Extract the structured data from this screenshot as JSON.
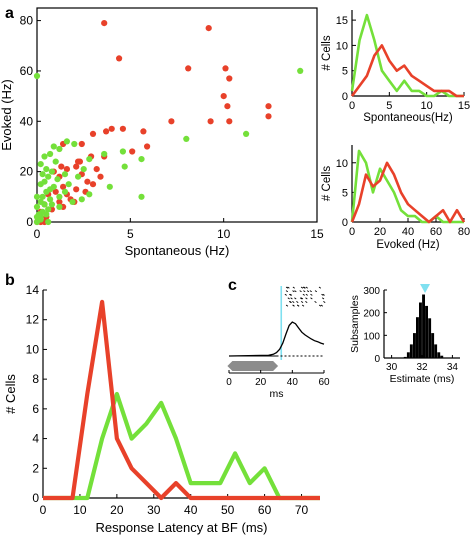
{
  "panel_letters": {
    "a": "a",
    "b": "b",
    "c": "c"
  },
  "colors": {
    "red": "#e8412a",
    "green": "#74e03a",
    "black": "#000000",
    "gray": "#8c8c8c",
    "cyan": "#7fe0f0"
  },
  "chart_data": [
    {
      "id": "scatter",
      "type": "scatter",
      "xlabel": "Spontaneous (Hz)",
      "ylabel": "Evoked (Hz)",
      "xlim": [
        0,
        15
      ],
      "ylim": [
        0,
        85
      ],
      "xticks": [
        "0",
        "5",
        "10",
        "15"
      ],
      "xtick_values": [
        0,
        5,
        10,
        15
      ],
      "yticks": [
        "0",
        "20",
        "40",
        "60",
        "80"
      ],
      "ytick_values": [
        0,
        20,
        40,
        60,
        80
      ],
      "series": [
        {
          "color": "red",
          "points": [
            [
              3.6,
              79
            ],
            [
              9.2,
              77
            ],
            [
              4.4,
              65
            ],
            [
              8.1,
              61
            ],
            [
              10.1,
              61
            ],
            [
              10.3,
              57
            ],
            [
              10.0,
              50
            ],
            [
              10.2,
              46
            ],
            [
              12.4,
              46
            ],
            [
              12.4,
              42
            ],
            [
              9.3,
              40
            ],
            [
              10.3,
              40
            ],
            [
              7.2,
              40
            ],
            [
              4.6,
              37
            ],
            [
              4.0,
              37
            ],
            [
              5.7,
              36
            ],
            [
              3.7,
              36
            ],
            [
              3.0,
              35
            ],
            [
              1.4,
              31
            ],
            [
              5.9,
              30
            ],
            [
              2.4,
              31
            ],
            [
              5.1,
              28
            ],
            [
              3.6,
              26
            ],
            [
              2.9,
              26
            ],
            [
              2.2,
              24
            ],
            [
              1.3,
              22
            ],
            [
              2.1,
              22
            ],
            [
              3.2,
              21
            ],
            [
              1.6,
              21
            ],
            [
              0.9,
              20
            ],
            [
              2.4,
              19
            ],
            [
              3.4,
              18
            ],
            [
              1.2,
              18
            ],
            [
              2.7,
              16
            ],
            [
              3.0,
              15
            ],
            [
              1.4,
              14
            ],
            [
              2.1,
              13
            ],
            [
              2.6,
              12
            ],
            [
              1.0,
              12
            ],
            [
              1.6,
              11
            ],
            [
              0.6,
              11
            ],
            [
              1.8,
              9
            ],
            [
              1.2,
              8
            ],
            [
              2.0,
              8
            ],
            [
              0.4,
              7
            ],
            [
              1.4,
              6
            ],
            [
              0.8,
              5
            ],
            [
              0.2,
              4
            ],
            [
              0.5,
              2
            ],
            [
              0.1,
              1
            ],
            [
              0.2,
              0
            ],
            [
              0.4,
              0
            ],
            [
              0.0,
              0
            ],
            [
              2.3,
              24
            ]
          ]
        },
        {
          "color": "green",
          "points": [
            [
              0.0,
              58
            ],
            [
              14.1,
              60
            ],
            [
              11.2,
              35
            ],
            [
              8.0,
              33
            ],
            [
              1.6,
              32
            ],
            [
              2.0,
              31
            ],
            [
              0.9,
              30
            ],
            [
              1.2,
              29
            ],
            [
              4.6,
              28
            ],
            [
              0.7,
              27
            ],
            [
              3.6,
              27
            ],
            [
              0.4,
              26
            ],
            [
              2.8,
              25
            ],
            [
              5.6,
              25
            ],
            [
              1.0,
              24
            ],
            [
              0.2,
              23
            ],
            [
              4.7,
              22
            ],
            [
              0.5,
              21
            ],
            [
              2.5,
              21
            ],
            [
              0.8,
              20
            ],
            [
              0.3,
              19
            ],
            [
              1.5,
              19
            ],
            [
              2.2,
              18
            ],
            [
              0.6,
              18
            ],
            [
              1.1,
              17
            ],
            [
              0.4,
              16
            ],
            [
              0.2,
              15
            ],
            [
              1.7,
              15
            ],
            [
              0.9,
              14
            ],
            [
              3.9,
              14
            ],
            [
              0.7,
              13
            ],
            [
              1.5,
              12
            ],
            [
              0.5,
              12
            ],
            [
              2.8,
              11
            ],
            [
              0.3,
              10
            ],
            [
              0.0,
              10
            ],
            [
              1.2,
              10
            ],
            [
              5.6,
              10
            ],
            [
              0.7,
              9
            ],
            [
              2.4,
              9
            ],
            [
              1.9,
              8
            ],
            [
              0.2,
              8
            ],
            [
              0.4,
              7
            ],
            [
              0.8,
              7
            ],
            [
              0.0,
              6
            ],
            [
              1.2,
              6
            ],
            [
              0.6,
              5
            ],
            [
              0.3,
              4
            ],
            [
              0.1,
              3
            ],
            [
              0.5,
              3
            ],
            [
              0.2,
              2
            ],
            [
              0.0,
              2
            ],
            [
              0.2,
              1
            ],
            [
              0.6,
              0
            ],
            [
              0.0,
              0
            ]
          ]
        }
      ]
    },
    {
      "id": "hist_spont",
      "type": "line",
      "xlabel": "Spontaneous(Hz)",
      "ylabel": "# Cells",
      "xlim": [
        0,
        15
      ],
      "ylim": [
        0,
        17
      ],
      "xticks": [
        "0",
        "5",
        "10",
        "15"
      ],
      "xtick_values": [
        0,
        5,
        10,
        15
      ],
      "yticks": [
        "0",
        "5",
        "10",
        "15"
      ],
      "ytick_values": [
        0,
        5,
        10,
        15
      ],
      "series": [
        {
          "color": "green",
          "x": [
            0,
            1,
            2,
            3,
            4,
            5,
            6,
            7,
            8,
            9,
            10,
            11,
            12,
            13,
            14,
            15
          ],
          "values": [
            1,
            11,
            16,
            11,
            5,
            3,
            1,
            3,
            1,
            1,
            0,
            0,
            1,
            0,
            0,
            0
          ]
        },
        {
          "color": "red",
          "x": [
            0,
            1,
            2,
            3,
            4,
            5,
            6,
            7,
            8,
            9,
            10,
            11,
            12,
            13,
            14,
            15
          ],
          "values": [
            0,
            2,
            4,
            8,
            10,
            7,
            5,
            6,
            4,
            3,
            2,
            1,
            1,
            1,
            0,
            0
          ]
        }
      ]
    },
    {
      "id": "hist_evoked",
      "type": "line",
      "xlabel": "Evoked (Hz)",
      "ylabel": "# Cells",
      "xlim": [
        0,
        80
      ],
      "ylim": [
        0,
        13
      ],
      "xticks": [
        "0",
        "20",
        "40",
        "60",
        "80"
      ],
      "xtick_values": [
        0,
        20,
        40,
        60,
        80
      ],
      "yticks": [
        "0",
        "5",
        "10"
      ],
      "ytick_values": [
        0,
        5,
        10
      ],
      "series": [
        {
          "color": "green",
          "x": [
            0,
            5,
            10,
            15,
            20,
            25,
            30,
            35,
            40,
            45,
            50,
            55,
            60,
            65,
            70,
            75,
            80
          ],
          "values": [
            0,
            12,
            10,
            5,
            9,
            7,
            5,
            2,
            1,
            1,
            0,
            0,
            1,
            0,
            0,
            0,
            0
          ]
        },
        {
          "color": "red",
          "x": [
            0,
            5,
            10,
            15,
            20,
            25,
            30,
            35,
            40,
            45,
            50,
            55,
            60,
            65,
            70,
            75,
            80
          ],
          "values": [
            0,
            3,
            8,
            6,
            7,
            10,
            8,
            5,
            3,
            2,
            1,
            0,
            1,
            2,
            0,
            2,
            0
          ]
        }
      ]
    },
    {
      "id": "latency",
      "type": "line",
      "xlabel": "Response Latency at BF (ms)",
      "ylabel": "# Cells",
      "xlim": [
        0,
        75
      ],
      "ylim": [
        0,
        14
      ],
      "xticks": [
        "0",
        "10",
        "20",
        "30",
        "40",
        "50",
        "60",
        "70"
      ],
      "xtick_values": [
        0,
        10,
        20,
        30,
        40,
        50,
        60,
        70
      ],
      "yticks": [
        "0",
        "2",
        "4",
        "6",
        "8",
        "10",
        "12",
        "14"
      ],
      "ytick_values": [
        0,
        2,
        4,
        6,
        8,
        10,
        12,
        14
      ],
      "series": [
        {
          "color": "green",
          "x": [
            0,
            5,
            8,
            12,
            16,
            20,
            24,
            28,
            32,
            36,
            40,
            44,
            48,
            52,
            56,
            60,
            64,
            68,
            75
          ],
          "values": [
            0,
            0,
            0,
            0,
            4,
            7,
            4,
            5,
            6.4,
            4,
            1,
            1,
            1,
            3,
            1,
            2,
            0,
            0,
            0
          ]
        },
        {
          "color": "red",
          "x": [
            0,
            5,
            8,
            12,
            16,
            20,
            24,
            28,
            32,
            36,
            40,
            44,
            48,
            52,
            56,
            60,
            64,
            68,
            75
          ],
          "values": [
            0,
            0,
            0,
            7,
            13.2,
            4,
            2,
            1,
            0,
            1,
            0,
            0,
            0,
            0,
            0,
            0,
            0,
            0,
            0
          ]
        }
      ]
    },
    {
      "id": "psth",
      "type": "line",
      "xlabel": "ms",
      "xlim": [
        0,
        60
      ],
      "xticks": [
        "0",
        "20",
        "40",
        "60"
      ],
      "xtick_values": [
        0,
        20,
        40,
        60
      ],
      "marker_x": 33,
      "series": [
        {
          "color": "black",
          "x": [
            0,
            25,
            28,
            30,
            32,
            34,
            36,
            38,
            40,
            42,
            44,
            46,
            48,
            50,
            52,
            54,
            56,
            58,
            60
          ],
          "values": [
            0,
            0.02,
            0.05,
            0.1,
            0.2,
            0.38,
            0.65,
            0.9,
            1.0,
            0.95,
            0.82,
            0.7,
            0.62,
            0.56,
            0.5,
            0.45,
            0.42,
            0.38,
            0.35
          ]
        }
      ]
    },
    {
      "id": "subsamples",
      "type": "bar",
      "xlabel": "Estimate (ms)",
      "ylabel": "Subsamples",
      "xlim": [
        29.5,
        34.5
      ],
      "ylim": [
        0,
        300
      ],
      "xticks": [
        "30",
        "32",
        "34"
      ],
      "xtick_values": [
        30,
        32,
        34
      ],
      "yticks": [
        "0",
        "100",
        "200",
        "300"
      ],
      "ytick_values": [
        0,
        100,
        200,
        300
      ],
      "marker_x": 32.2,
      "x": [
        30.9,
        31.1,
        31.3,
        31.5,
        31.7,
        31.9,
        32.1,
        32.3,
        32.5,
        32.7,
        32.9,
        33.1,
        33.3
      ],
      "values": [
        5,
        25,
        60,
        110,
        180,
        245,
        280,
        230,
        175,
        110,
        60,
        25,
        10
      ]
    }
  ]
}
